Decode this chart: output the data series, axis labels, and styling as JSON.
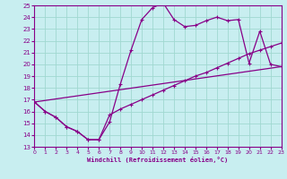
{
  "xlabel": "Windchill (Refroidissement éolien,°C)",
  "bg_color": "#c8eef0",
  "grid_color": "#a0d8d0",
  "line_color": "#880088",
  "xmin": 0,
  "xmax": 23,
  "ymin": 13,
  "ymax": 25,
  "series1_x": [
    0,
    1,
    2,
    3,
    4,
    5,
    6,
    7,
    8,
    9,
    10,
    11,
    12,
    13,
    14,
    15,
    16,
    17,
    18,
    19,
    20,
    21,
    22,
    23
  ],
  "series1_y": [
    16.8,
    16.0,
    15.5,
    14.7,
    14.3,
    13.6,
    13.6,
    15.1,
    18.3,
    21.2,
    23.8,
    24.8,
    25.2,
    23.8,
    23.2,
    23.3,
    23.7,
    24.0,
    23.7,
    23.8,
    20.1,
    22.8,
    20.0,
    19.8
  ],
  "series2_x": [
    0,
    1,
    2,
    3,
    4,
    5,
    6,
    7,
    8,
    9,
    10,
    11,
    12,
    13,
    14,
    15,
    16,
    17,
    18,
    19,
    20,
    21,
    22,
    23
  ],
  "series2_y": [
    16.8,
    16.0,
    15.5,
    14.7,
    14.3,
    13.6,
    13.6,
    15.7,
    16.2,
    16.6,
    17.0,
    17.4,
    17.8,
    18.2,
    18.6,
    19.0,
    19.3,
    19.7,
    20.1,
    20.5,
    20.9,
    21.2,
    21.5,
    21.8
  ],
  "series3_x": [
    0,
    23
  ],
  "series3_y": [
    16.8,
    19.8
  ]
}
